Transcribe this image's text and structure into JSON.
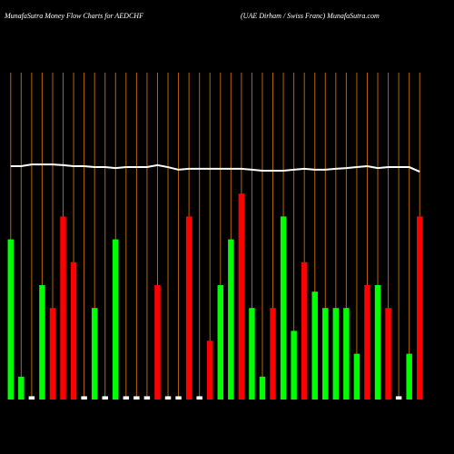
{
  "chart_data": {
    "type": "bar",
    "title": "MunafaSutra  Money Flow  Charts for AEDCHF",
    "subtitle": "(UAE Dirham / Swiss Franc) MunafaSutra.com",
    "categories": [
      null,
      null,
      null,
      null,
      null,
      null,
      null,
      null,
      null,
      null,
      null,
      null,
      null,
      null,
      null,
      null,
      null,
      null,
      null,
      null,
      null,
      null,
      null,
      null,
      null,
      null,
      null,
      null,
      null,
      null,
      null,
      null,
      null,
      null,
      null,
      null,
      null,
      null,
      null,
      null
    ],
    "values": [
      49,
      7,
      1,
      35,
      28,
      56,
      42,
      1,
      28,
      1,
      49,
      1,
      1,
      1,
      35,
      1,
      1,
      56,
      1,
      18,
      35,
      49,
      63,
      28,
      7,
      28,
      56,
      21,
      42,
      33,
      28,
      28,
      28,
      14,
      35,
      35,
      28,
      1,
      14,
      56
    ],
    "colors": [
      "#00ff00",
      "#00ff00",
      "#ffffff",
      "#00ff00",
      "#ff0000",
      "#ff0000",
      "#ff0000",
      "#ffffff",
      "#00ff00",
      "#ffffff",
      "#00ff00",
      "#ffffff",
      "#ffffff",
      "#ffffff",
      "#ff0000",
      "#ffffff",
      "#ffffff",
      "#ff0000",
      "#ffffff",
      "#ff0000",
      "#00ff00",
      "#00ff00",
      "#ff0000",
      "#00ff00",
      "#00ff00",
      "#ff0000",
      "#00ff00",
      "#00ff00",
      "#ff0000",
      "#00ff00",
      "#00ff00",
      "#00ff00",
      "#00ff00",
      "#00ff00",
      "#ff0000",
      "#00ff00",
      "#ff0000",
      "#ffffff",
      "#00ff00",
      "#ff0000"
    ],
    "line": {
      "color": "#ffffff",
      "values": [
        71.4,
        71.4,
        71.9,
        71.9,
        71.9,
        71.7,
        71.4,
        71.4,
        71.1,
        71.1,
        70.8,
        71.1,
        71.1,
        71.1,
        71.7,
        71.1,
        70.3,
        70.6,
        70.6,
        70.6,
        70.6,
        70.6,
        70.6,
        70.3,
        70,
        70,
        70,
        70.3,
        70.6,
        70.3,
        70.3,
        70.6,
        70.8,
        71.1,
        71.4,
        70.8,
        71.1,
        71.1,
        71.1,
        69.7
      ]
    },
    "grid_color": "#b8640a",
    "ylim": [
      0,
      100
    ]
  }
}
